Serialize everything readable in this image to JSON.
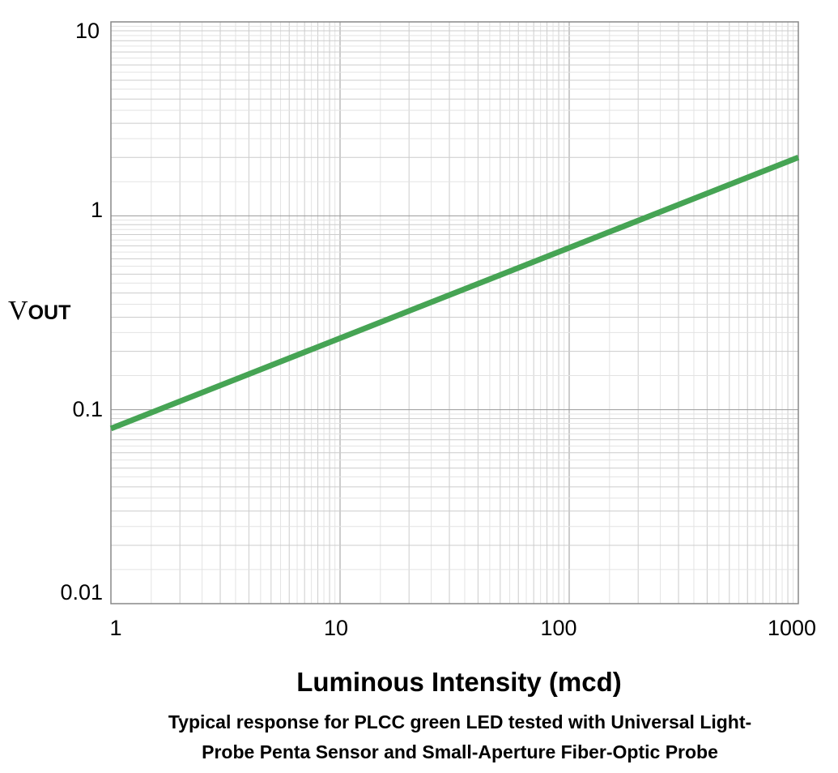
{
  "chart_data": {
    "type": "line",
    "x_scale": "log",
    "y_scale": "log",
    "xlim": [
      1,
      1000
    ],
    "ylim": [
      0.01,
      10
    ],
    "x_ticks": [
      "1",
      "10",
      "100",
      "1000"
    ],
    "y_ticks": [
      "0.01",
      "0.1",
      "1",
      "10"
    ],
    "ylabel_main": "V",
    "ylabel_sub": "OUT",
    "xlabel": "Luminous Intensity (mcd)",
    "caption_line1": "Typical response for PLCC green LED tested with Universal Light-",
    "caption_line2": "Probe Penta Sensor and Small-Aperture Fiber-Optic Probe",
    "grid": true,
    "series": [
      {
        "x": [
          1,
          1000
        ],
        "y": [
          0.08,
          2.0
        ],
        "color": "#46a454"
      }
    ]
  }
}
